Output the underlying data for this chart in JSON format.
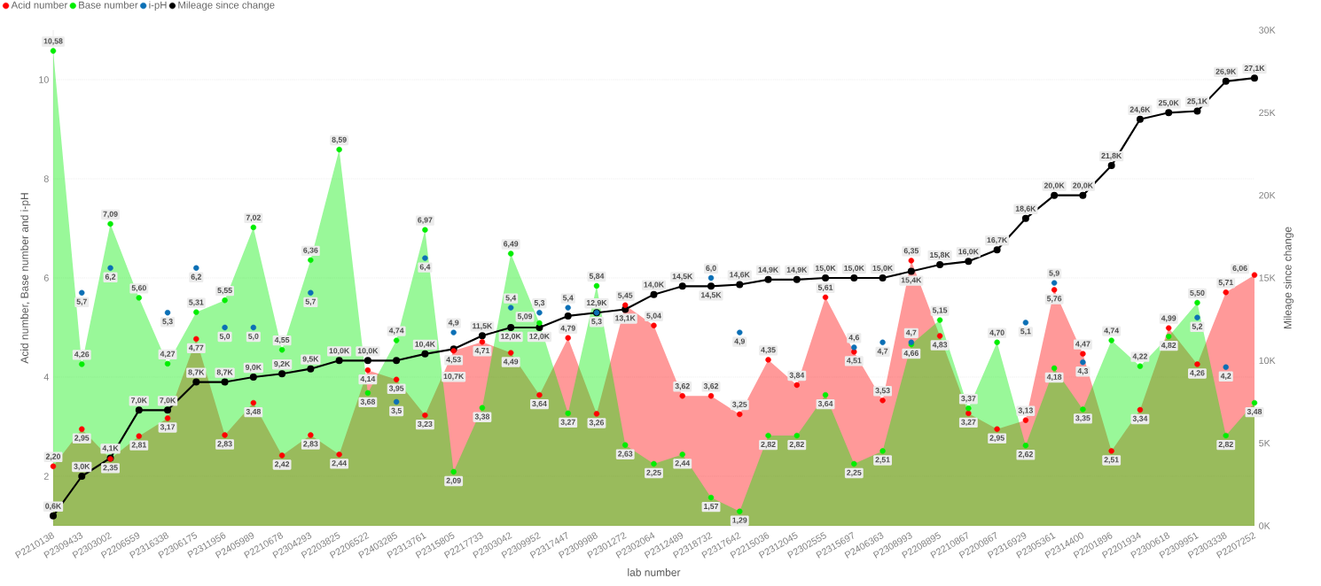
{
  "chart_data": {
    "type": "area",
    "xlabel": "lab number",
    "ylabel": "Acid number, Base number and i-pH",
    "y2label": "Mileage since change",
    "categories": [
      "P2210138",
      "P2309433",
      "P2303002",
      "P2206559",
      "P2316338",
      "P2306175",
      "P2311956",
      "P2405989",
      "P2210678",
      "P2304293",
      "P2203825",
      "P2206522",
      "P2403285",
      "P2313761",
      "P2315805",
      "P2217733",
      "P2303042",
      "P2309952",
      "P2317447",
      "P2309988",
      "P2301272",
      "P2302064",
      "P2312489",
      "P2318732",
      "P2317642",
      "P2215036",
      "P2312045",
      "P2302555",
      "P2315697",
      "P2406363",
      "P2308993",
      "P2208895",
      "P2210867",
      "P2200867",
      "P2316929",
      "P2305361",
      "P2314400",
      "P2201896",
      "P2201934",
      "P2300618",
      "P2309951",
      "P2303338",
      "P2207252"
    ],
    "series": [
      {
        "name": "Acid number",
        "color": "#ff0000",
        "values": [
          2.2,
          2.95,
          2.35,
          2.81,
          3.17,
          4.77,
          2.83,
          3.48,
          2.42,
          2.83,
          2.44,
          4.14,
          3.95,
          3.23,
          4.53,
          4.71,
          4.49,
          3.64,
          4.79,
          3.26,
          5.45,
          5.04,
          3.62,
          3.62,
          3.25,
          4.35,
          3.84,
          5.61,
          4.51,
          3.53,
          6.35,
          4.83,
          3.27,
          2.95,
          3.13,
          5.76,
          4.47,
          2.51,
          3.34,
          4.99,
          4.26,
          5.71,
          6.06
        ],
        "value_labels": [
          "2,20",
          "2,95",
          "2,35",
          "2,81",
          "3,17",
          "4,77",
          "2,83",
          "3,48",
          "2,42",
          "2,83",
          "2,44",
          "4,14",
          "3,95",
          "3,23",
          "4,53",
          "4,71",
          "4,49",
          "3,64",
          "4,79",
          "3,26",
          "5,45",
          "5,04",
          "3,62",
          "3,62",
          "3,25",
          "4,35",
          "3,84",
          "5,61",
          "4,51",
          "3,53",
          "6,35",
          "4,83",
          "3,27",
          "2,95",
          "3,13",
          "5,76",
          "4,47",
          "2,51",
          "3,34",
          "4,99",
          "4,26",
          "5,71",
          "6,06"
        ]
      },
      {
        "name": "Base number",
        "color": "#00ee00",
        "values": [
          10.58,
          4.26,
          7.09,
          5.6,
          4.27,
          5.31,
          5.55,
          7.02,
          4.55,
          6.36,
          8.59,
          3.68,
          4.74,
          6.97,
          2.09,
          3.38,
          6.49,
          5.09,
          3.27,
          5.84,
          2.63,
          2.25,
          2.44,
          1.57,
          1.29,
          2.82,
          2.82,
          3.64,
          2.25,
          2.51,
          4.66,
          5.15,
          3.37,
          4.7,
          2.62,
          4.18,
          3.35,
          4.74,
          4.22,
          4.82,
          5.5,
          2.82,
          3.48
        ],
        "value_labels": [
          "10,58",
          "4,26",
          "7,09",
          "5,60",
          "4,27",
          "5,31",
          "5,55",
          "7,02",
          "4,55",
          "6,36",
          "8,59",
          "3,68",
          "4,74",
          "6,97",
          "2,09",
          "3,38",
          "6,49",
          "5,09",
          "3,27",
          "5,84",
          "2,63",
          "2,25",
          "2,44",
          "1,57",
          "1,29",
          "2,82",
          "2,82",
          "3,64",
          "2,25",
          "2,51",
          "4,66",
          "5,15",
          "3,37",
          "4,70",
          "2,62",
          "4,18",
          "3,35",
          "4,74",
          "4,22",
          "4,82",
          "5,50",
          "2,82",
          "3,48"
        ]
      },
      {
        "name": "i-pH",
        "type": "scatter",
        "color": "#0b6fb5",
        "values": [
          null,
          5.7,
          6.2,
          null,
          5.3,
          6.2,
          5.0,
          5.0,
          null,
          5.7,
          null,
          null,
          3.5,
          6.4,
          4.9,
          null,
          5.4,
          5.3,
          5.4,
          5.3,
          null,
          null,
          null,
          6.0,
          4.9,
          null,
          null,
          null,
          4.6,
          4.7,
          4.7,
          null,
          null,
          null,
          5.1,
          5.9,
          4.3,
          null,
          null,
          null,
          5.2,
          4.2,
          null
        ],
        "value_labels": [
          null,
          "5,7",
          "6,2",
          null,
          "5,3",
          "6,2",
          "5,0",
          "5,0",
          null,
          "5,7",
          null,
          null,
          "3,5",
          "6,4",
          "4,9",
          null,
          "5,4",
          "5,3",
          "5,4",
          "5,3",
          null,
          null,
          null,
          "6,0",
          "4,9",
          null,
          null,
          null,
          "4,6",
          "4,7",
          "4,7",
          null,
          null,
          null,
          "5,1",
          "5,9",
          "4,3",
          null,
          null,
          null,
          "5,2",
          "4,2",
          null
        ]
      },
      {
        "name": "Mileage since change",
        "type": "line",
        "axis": "y2",
        "color": "#000000",
        "values": [
          600,
          3000,
          4100,
          7000,
          7000,
          8700,
          8700,
          9000,
          9200,
          9500,
          10000,
          10000,
          10000,
          10400,
          10700,
          11500,
          12000,
          12000,
          12700,
          12900,
          13100,
          14000,
          14500,
          14500,
          14600,
          14900,
          14900,
          15000,
          15000,
          15000,
          15400,
          15800,
          16000,
          16700,
          18600,
          20000,
          20000,
          21800,
          24600,
          25000,
          25100,
          26900,
          27100
        ],
        "value_labels": [
          "0,6K",
          "3,0K",
          "4,1K",
          "7,0K",
          "7,0K",
          "8,7K",
          "8,7K",
          "9,0K",
          "9,2K",
          "9,5K",
          "10,0K",
          "10,0K",
          null,
          "10,4K",
          "10,7K",
          "11,5K",
          "12,0K",
          "12,0K",
          null,
          "12,9K",
          "13,1K",
          "14,0K",
          "14,5K",
          "14,5K",
          "14,6K",
          "14,9K",
          "14,9K",
          "15,0K",
          "15,0K",
          "15,0K",
          "15,4K",
          "15,8K",
          "16,0K",
          "16,7K",
          "18,6K",
          "20,0K",
          "20,0K",
          "21,8K",
          "24,6K",
          "25,0K",
          "25,1K",
          "26,9K",
          "27,1K"
        ]
      }
    ],
    "ylim": [
      1,
      11
    ],
    "yticks": [
      2,
      4,
      6,
      8,
      10
    ],
    "y2lim": [
      0,
      30000
    ],
    "y2ticks": [
      {
        "value": 0,
        "label": "0K"
      },
      {
        "value": 5000,
        "label": "5K"
      },
      {
        "value": 10000,
        "label": "10K"
      },
      {
        "value": 15000,
        "label": "15K"
      },
      {
        "value": 20000,
        "label": "20K"
      },
      {
        "value": 25000,
        "label": "25K"
      },
      {
        "value": 30000,
        "label": "30K"
      }
    ],
    "grid": "y",
    "legend": "top left",
    "marker": "circle"
  }
}
